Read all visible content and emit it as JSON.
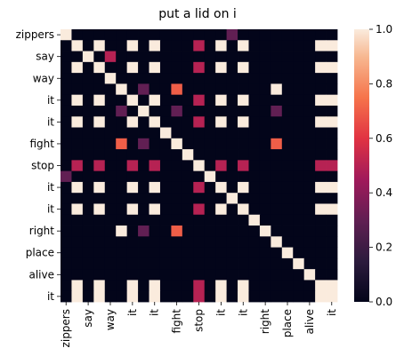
{
  "chart_data": {
    "type": "heatmap",
    "title": "put a lid on i",
    "x_labels": [
      "zippers",
      "",
      "say",
      "",
      "way",
      "",
      "it",
      "",
      "it",
      "",
      "fight",
      "",
      "stop",
      "",
      "it",
      "",
      "it",
      "",
      "right",
      "",
      "place",
      "",
      "alive",
      "",
      "it"
    ],
    "y_labels": [
      "zippers",
      "",
      "say",
      "",
      "way",
      "",
      "it",
      "",
      "it",
      "",
      "fight",
      "",
      "stop",
      "",
      "it",
      "",
      "it",
      "",
      "right",
      "",
      "place",
      "",
      "alive",
      "",
      "it"
    ],
    "x_tick_labels": [
      "zippers",
      "say",
      "way",
      "it",
      "it",
      "fight",
      "stop",
      "it",
      "it",
      "right",
      "place",
      "alive",
      "it"
    ],
    "y_tick_labels": [
      "zippers",
      "say",
      "way",
      "it",
      "it",
      "fight",
      "stop",
      "it",
      "it",
      "right",
      "place",
      "alive",
      "it"
    ],
    "colorbar": {
      "min": 0.0,
      "max": 1.0,
      "ticks": [
        "0.0",
        "0.2",
        "0.4",
        "0.6",
        "0.8",
        "1.0"
      ]
    },
    "colormap": "rocket",
    "values": [
      [
        1,
        0,
        0,
        0,
        0,
        0,
        0,
        0,
        0,
        0,
        0,
        0,
        0,
        0,
        0,
        0.3,
        0,
        0,
        0,
        0,
        0,
        0,
        0,
        0,
        0
      ],
      [
        0,
        1,
        0,
        1,
        0,
        0,
        1,
        0,
        1,
        0,
        0,
        0,
        0.5,
        0,
        1,
        0,
        1,
        0,
        0,
        0,
        0,
        0,
        0,
        1,
        1
      ],
      [
        0,
        0,
        1,
        0,
        0.5,
        0,
        0,
        0,
        0,
        0,
        0,
        0,
        0,
        0,
        0,
        0,
        0,
        0,
        0,
        0,
        0,
        0,
        0,
        0,
        0
      ],
      [
        0,
        1,
        0,
        1,
        0,
        0,
        1,
        0,
        1,
        0,
        0,
        0,
        0.5,
        0,
        1,
        0,
        1,
        0,
        0,
        0,
        0,
        0,
        0,
        1,
        1
      ],
      [
        0,
        0,
        0,
        0,
        1,
        0,
        0,
        0,
        0,
        0,
        0,
        0,
        0,
        0,
        0,
        0,
        0,
        0,
        0,
        0,
        0,
        0,
        0,
        0,
        0
      ],
      [
        0,
        0,
        0,
        0,
        0,
        1,
        0,
        0.3,
        0,
        0,
        0.7,
        0,
        0,
        0,
        0,
        0,
        0,
        0,
        0,
        1,
        0,
        0,
        0,
        0,
        0
      ],
      [
        0,
        1,
        0,
        1,
        0,
        0,
        1,
        0,
        1,
        0,
        0,
        0,
        0.5,
        0,
        1,
        0,
        1,
        0,
        0,
        0,
        0,
        0,
        0,
        1,
        1
      ],
      [
        0,
        0,
        0,
        0,
        0,
        0.3,
        0,
        1,
        0,
        0,
        0.3,
        0,
        0,
        0,
        0,
        0,
        0,
        0,
        0,
        0.3,
        0,
        0,
        0,
        0,
        0
      ],
      [
        0,
        1,
        0,
        1,
        0,
        0,
        1,
        0,
        1,
        0,
        0,
        0,
        0.5,
        0,
        1,
        0,
        1,
        0,
        0,
        0,
        0,
        0,
        0,
        1,
        1
      ],
      [
        0,
        0,
        0,
        0,
        0,
        0,
        0,
        0,
        0,
        1,
        0,
        0,
        0,
        0,
        0,
        0,
        0,
        0,
        0,
        0,
        0,
        0,
        0,
        0,
        0
      ],
      [
        0,
        0,
        0,
        0,
        0,
        0.7,
        0,
        0.3,
        0,
        0,
        1,
        0,
        0,
        0,
        0,
        0,
        0,
        0,
        0,
        0.7,
        0,
        0,
        0,
        0,
        0
      ],
      [
        0,
        0,
        0,
        0,
        0,
        0,
        0,
        0,
        0,
        0,
        0,
        1,
        0,
        0,
        0,
        0,
        0,
        0,
        0,
        0,
        0,
        0,
        0,
        0,
        0
      ],
      [
        0,
        0.5,
        0,
        0.5,
        0,
        0,
        0.5,
        0,
        0.5,
        0,
        0,
        0,
        1,
        0,
        0.5,
        0,
        0.5,
        0,
        0,
        0,
        0,
        0,
        0,
        0.5,
        0.5
      ],
      [
        0.3,
        0,
        0,
        0,
        0,
        0,
        0,
        0,
        0,
        0,
        0,
        0,
        0,
        1,
        0,
        0,
        0,
        0,
        0,
        0,
        0,
        0,
        0,
        0,
        0
      ],
      [
        0,
        1,
        0,
        1,
        0,
        0,
        1,
        0,
        1,
        0,
        0,
        0,
        0.5,
        0,
        1,
        0,
        1,
        0,
        0,
        0,
        0,
        0,
        0,
        1,
        1
      ],
      [
        0,
        0,
        0,
        0,
        0,
        0,
        0,
        0,
        0,
        0,
        0,
        0,
        0,
        0,
        0,
        1,
        0,
        0,
        0,
        0,
        0,
        0,
        0,
        0,
        0
      ],
      [
        0,
        1,
        0,
        1,
        0,
        0,
        1,
        0,
        1,
        0,
        0,
        0,
        0.5,
        0,
        1,
        0,
        1,
        0,
        0,
        0,
        0,
        0,
        0,
        1,
        1
      ],
      [
        0,
        0,
        0,
        0,
        0,
        0,
        0,
        0,
        0,
        0,
        0,
        0,
        0,
        0,
        0,
        0,
        0,
        1,
        0,
        0,
        0,
        0,
        0,
        0,
        0
      ],
      [
        0,
        0,
        0,
        0,
        0,
        1,
        0,
        0.3,
        0,
        0,
        0.7,
        0,
        0,
        0,
        0,
        0,
        0,
        0,
        1,
        0,
        0,
        0,
        0,
        0,
        0
      ],
      [
        0,
        0,
        0,
        0,
        0,
        0,
        0,
        0,
        0,
        0,
        0,
        0,
        0,
        0,
        0,
        0,
        0,
        0,
        0,
        1,
        0,
        0,
        0,
        0,
        0
      ],
      [
        0,
        0,
        0,
        0,
        0,
        0,
        0,
        0,
        0,
        0,
        0,
        0,
        0,
        0,
        0,
        0,
        0,
        0,
        0,
        0,
        1,
        0,
        0,
        0,
        0
      ],
      [
        0,
        0,
        0,
        0,
        0,
        0,
        0,
        0,
        0,
        0,
        0,
        0,
        0,
        0,
        0,
        0,
        0,
        0,
        0,
        0,
        0,
        1,
        0,
        0,
        0
      ],
      [
        0,
        0,
        0,
        0,
        0,
        0,
        0,
        0,
        0,
        0,
        0,
        0,
        0,
        0,
        0,
        0,
        0,
        0,
        0,
        0,
        0,
        0,
        1,
        0,
        0
      ],
      [
        0,
        1,
        0,
        1,
        0,
        0,
        1,
        0,
        1,
        0,
        0,
        0,
        0.5,
        0,
        1,
        0,
        1,
        0,
        0,
        0,
        0,
        0,
        0,
        1,
        1
      ],
      [
        0,
        1,
        0,
        1,
        0,
        0,
        1,
        0,
        1,
        0,
        0,
        0,
        0.5,
        0,
        1,
        0,
        1,
        0,
        0,
        0,
        0,
        0,
        0,
        1,
        1
      ]
    ]
  }
}
